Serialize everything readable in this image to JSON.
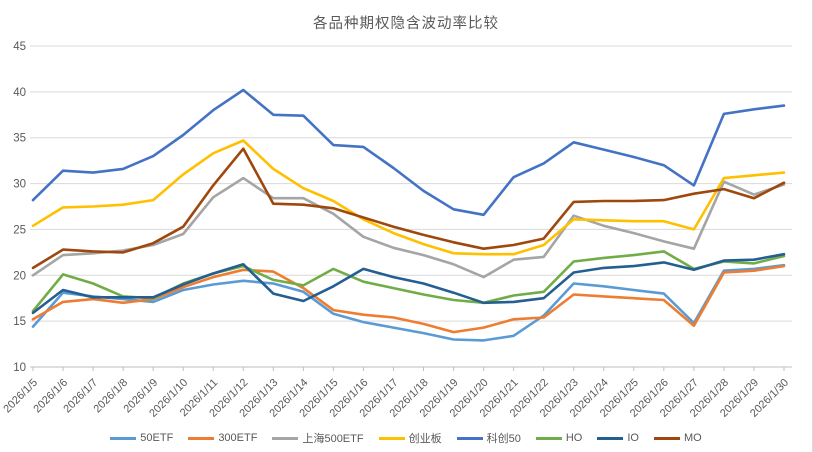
{
  "title": "各品种期权隐含波动率比较",
  "chart_data": {
    "type": "line",
    "title": "各品种期权隐含波动率比较",
    "xlabel": "",
    "ylabel": "",
    "ylim": [
      10,
      45
    ],
    "yticks": [
      10,
      15,
      20,
      25,
      30,
      35,
      40,
      45
    ],
    "grid": true,
    "legend_position": "bottom",
    "categories": [
      "2026/1/5",
      "2026/1/6",
      "2026/1/7",
      "2026/1/8",
      "2026/1/9",
      "2026/1/10",
      "2026/1/11",
      "2026/1/12",
      "2026/1/13",
      "2026/1/14",
      "2026/1/15",
      "2026/1/16",
      "2026/1/17",
      "2026/1/18",
      "2026/1/19",
      "2026/1/20",
      "2026/1/21",
      "2026/1/22",
      "2026/1/23",
      "2026/1/24",
      "2026/1/25",
      "2026/1/26",
      "2026/1/27",
      "2026/1/28",
      "2026/1/29",
      "2026/1/30"
    ],
    "series": [
      {
        "name": "50ETF",
        "color": "#5B9BD5",
        "values": [
          14.4,
          18.1,
          17.7,
          17.4,
          17.1,
          18.4,
          19.0,
          19.4,
          19.1,
          18.2,
          15.8,
          14.9,
          14.3,
          13.7,
          13.0,
          12.9,
          13.4,
          15.6,
          19.1,
          18.8,
          18.4,
          18.0,
          14.8,
          20.5,
          20.7,
          21.1
        ]
      },
      {
        "name": "300ETF",
        "color": "#ED7D31",
        "values": [
          15.2,
          17.1,
          17.4,
          17.0,
          17.4,
          18.7,
          19.8,
          20.6,
          20.4,
          18.6,
          16.2,
          15.7,
          15.4,
          14.7,
          13.8,
          14.3,
          15.2,
          15.4,
          17.9,
          17.7,
          17.5,
          17.3,
          14.5,
          20.3,
          20.5,
          21.0
        ]
      },
      {
        "name": "上海500ETF",
        "color": "#A5A5A5",
        "values": [
          20.0,
          22.2,
          22.4,
          22.7,
          23.3,
          24.5,
          28.5,
          30.6,
          28.4,
          28.4,
          26.7,
          24.2,
          23.0,
          22.2,
          21.2,
          19.8,
          21.7,
          22.0,
          26.5,
          25.4,
          24.6,
          23.7,
          22.9,
          30.2,
          28.8,
          29.9
        ]
      },
      {
        "name": "创业板",
        "color": "#FFC000",
        "values": [
          25.4,
          27.4,
          27.5,
          27.7,
          28.2,
          31.0,
          33.3,
          34.7,
          31.6,
          29.5,
          28.1,
          26.1,
          24.6,
          23.4,
          22.4,
          22.3,
          22.3,
          23.3,
          26.1,
          26.0,
          25.9,
          25.9,
          25.0,
          30.6,
          30.9,
          31.2
        ]
      },
      {
        "name": "科创50",
        "color": "#4472C4",
        "values": [
          28.2,
          31.4,
          31.2,
          31.6,
          33.0,
          35.3,
          38.0,
          40.2,
          37.5,
          37.4,
          34.2,
          34.0,
          31.7,
          29.2,
          27.2,
          26.6,
          30.7,
          32.2,
          34.5,
          33.7,
          32.9,
          32.0,
          29.8,
          37.6,
          38.1,
          38.5
        ]
      },
      {
        "name": "HO",
        "color": "#70AD47",
        "values": [
          16.1,
          20.1,
          19.1,
          17.7,
          17.5,
          19.1,
          20.2,
          21.0,
          19.5,
          18.9,
          20.7,
          19.3,
          18.6,
          17.9,
          17.3,
          17.0,
          17.8,
          18.2,
          21.5,
          21.9,
          22.2,
          22.6,
          20.7,
          21.5,
          21.3,
          22.1
        ]
      },
      {
        "name": "IO",
        "color": "#255E91",
        "values": [
          15.9,
          18.4,
          17.6,
          17.6,
          17.6,
          19.0,
          20.2,
          21.2,
          18.0,
          17.2,
          18.8,
          20.7,
          19.8,
          19.1,
          18.1,
          17.0,
          17.1,
          17.5,
          20.3,
          20.8,
          21.0,
          21.4,
          20.6,
          21.6,
          21.7,
          22.3
        ]
      },
      {
        "name": "MO",
        "color": "#9E480E",
        "values": [
          20.8,
          22.8,
          22.6,
          22.5,
          23.5,
          25.3,
          29.8,
          33.8,
          27.8,
          27.7,
          27.3,
          26.3,
          25.3,
          24.4,
          23.6,
          22.9,
          23.3,
          24.0,
          28.0,
          28.1,
          28.1,
          28.2,
          28.9,
          29.4,
          28.4,
          30.1
        ]
      }
    ],
    "axis_color": "#BFBFBF",
    "gridline_color": "#D9D9D9",
    "label_color": "#595959"
  }
}
